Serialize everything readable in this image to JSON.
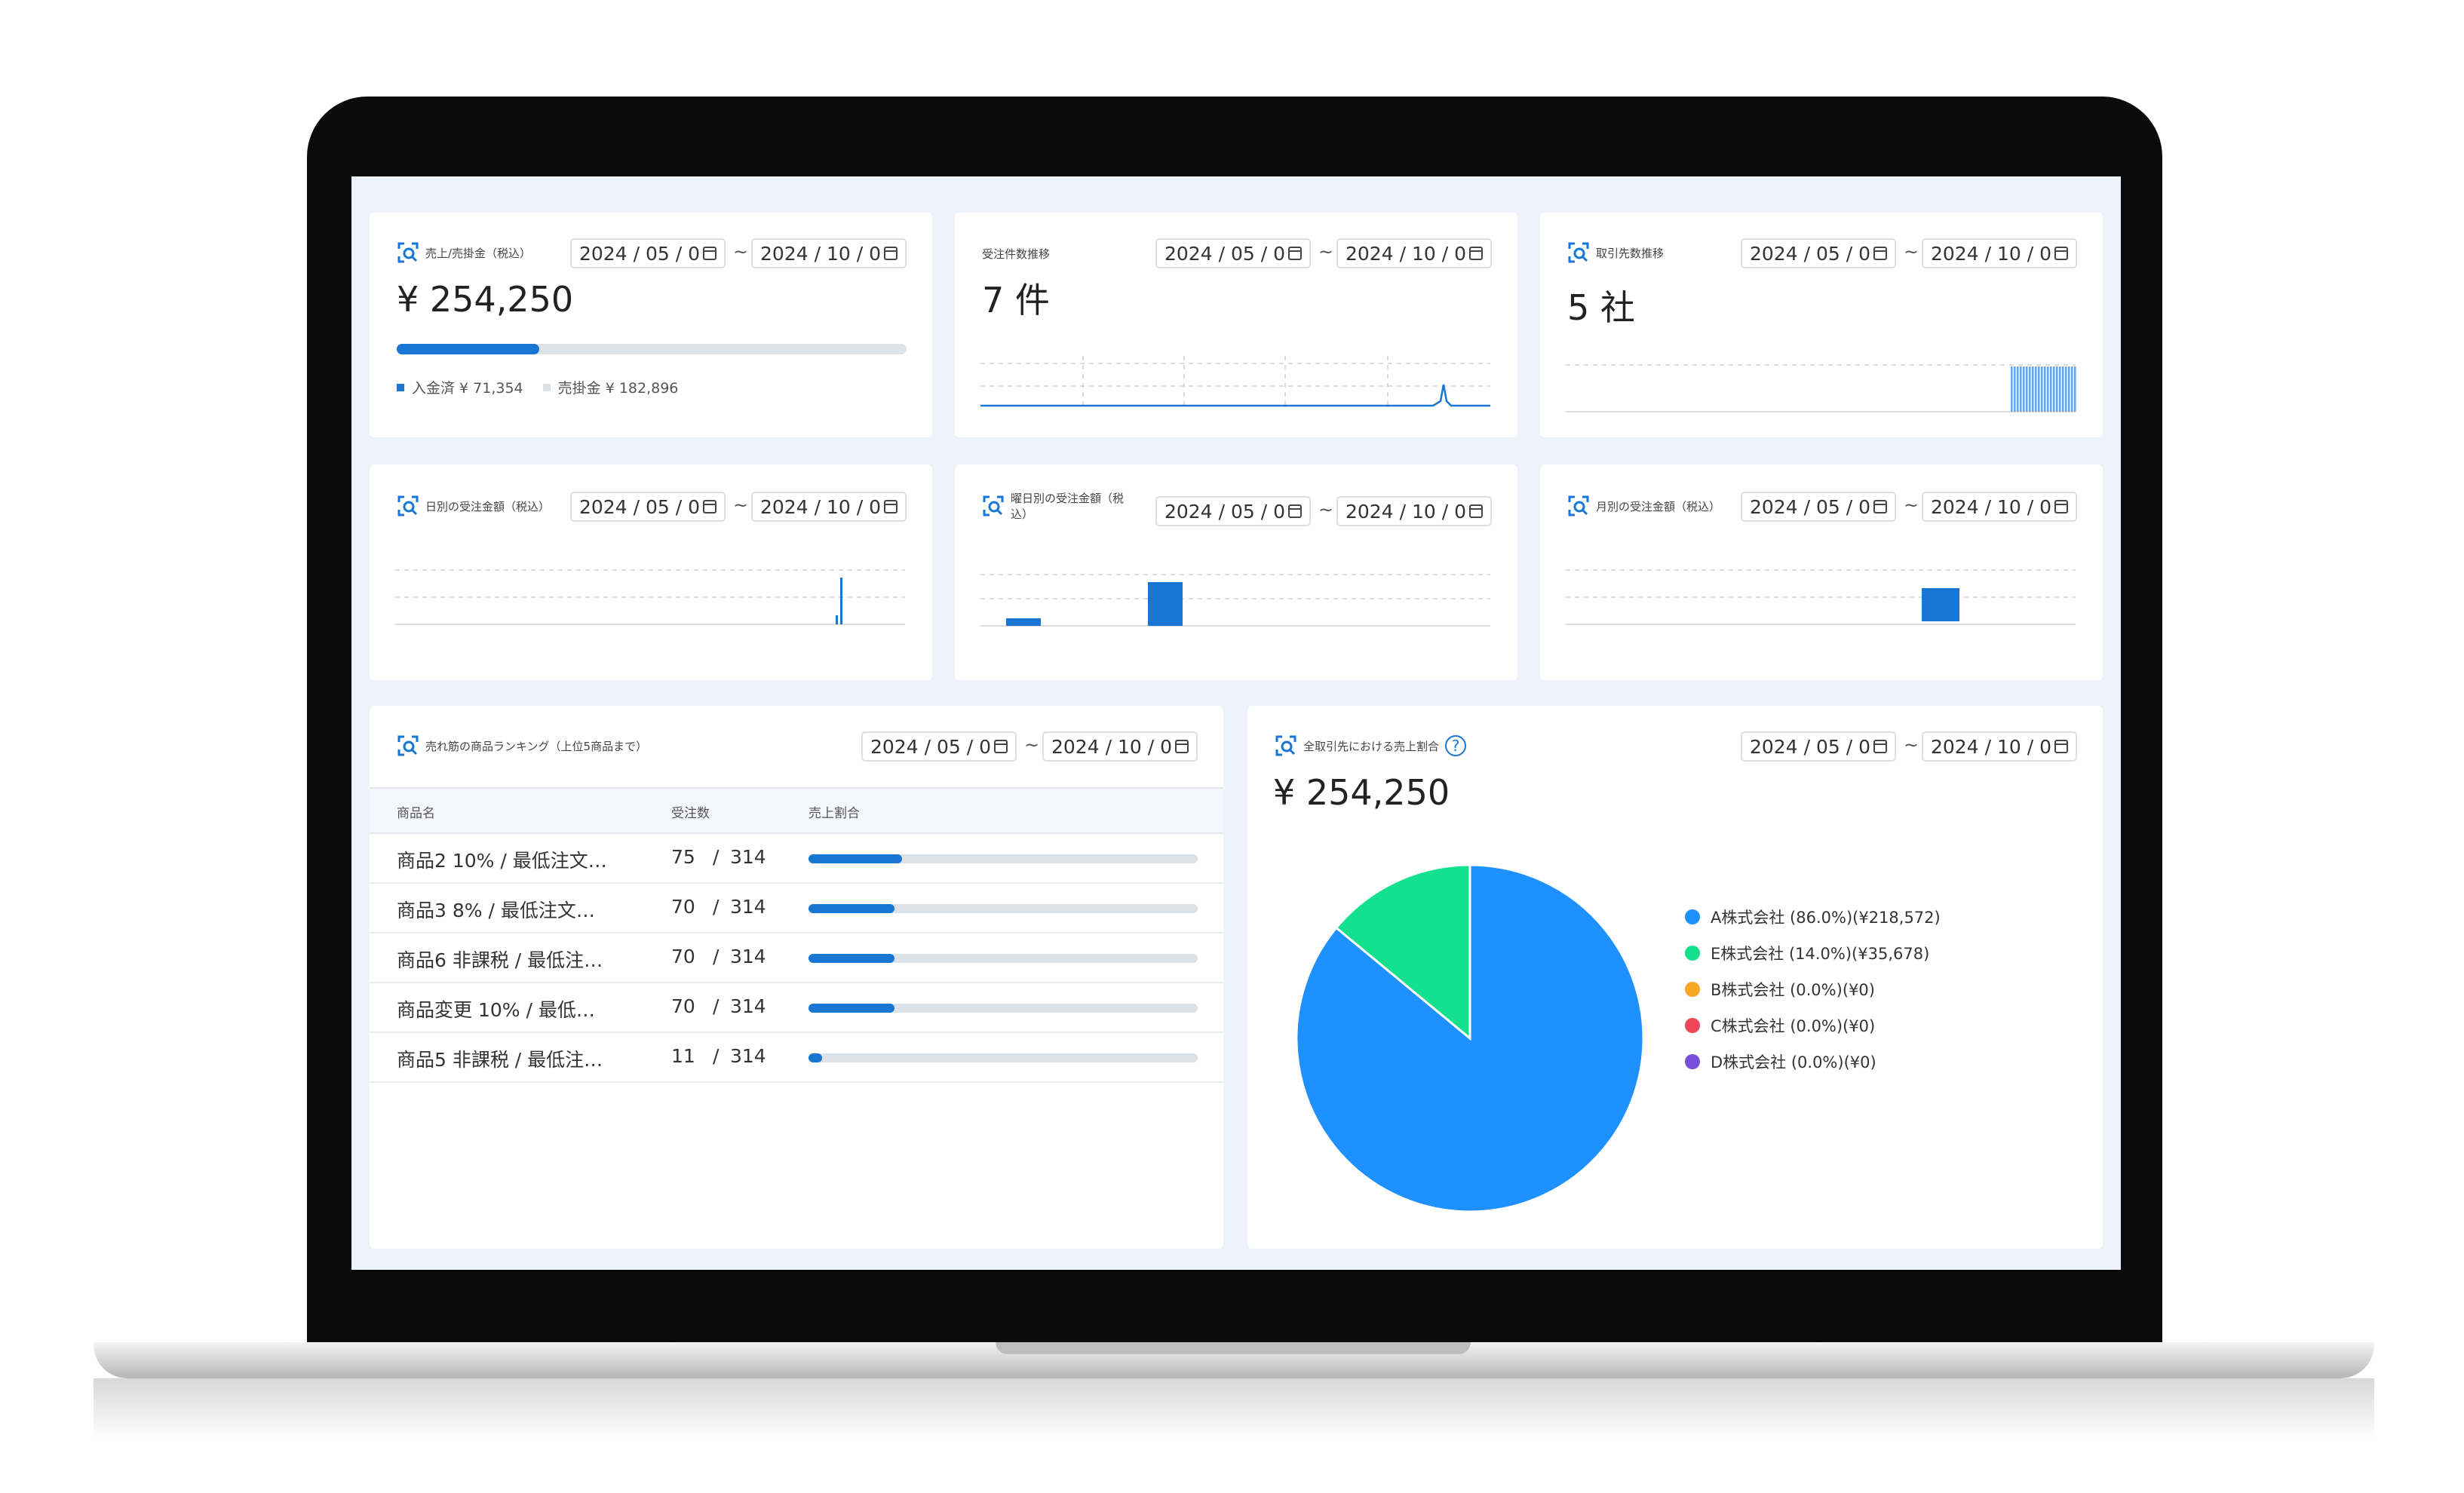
{
  "colors": {
    "accent": "#1976d2",
    "pie_a": "#1e90ff",
    "pie_e": "#14e18e",
    "pie_b": "#f5a623",
    "pie_c": "#f0465a",
    "pie_d": "#7b4ddb"
  },
  "date_from": "2024 / 05 / 0",
  "date_to": "2024 / 10 / 0",
  "tilde": "~",
  "sales": {
    "title": "売上/売掛金（税込）",
    "value": "¥ 254,250",
    "progress": 0.28,
    "legend_paid": "入金済 ¥ 71,354",
    "legend_receivable": "売掛金 ¥ 182,896"
  },
  "orders": {
    "title": "受注件数推移",
    "value": "7 件"
  },
  "clients": {
    "title": "取引先数推移",
    "value": "5 社"
  },
  "daily": {
    "title": "日別の受注金額（税込）"
  },
  "weekday": {
    "title": "曜日別の受注金額（税込）"
  },
  "monthly": {
    "title": "月別の受注金額（税込）"
  },
  "ranking": {
    "title": "売れ筋の商品ランキング（上位5商品まで）",
    "headers": [
      "商品名",
      "受注数",
      "売上割合"
    ],
    "rows": [
      {
        "name": "商品2 10% / 最低注文…",
        "qty": "75",
        "total": "314",
        "ratio": 0.24
      },
      {
        "name": "商品3 8% / 最低注文…",
        "qty": "70",
        "total": "314",
        "ratio": 0.22
      },
      {
        "name": "商品6 非課税 / 最低注…",
        "qty": "70",
        "total": "314",
        "ratio": 0.22
      },
      {
        "name": "商品変更 10% / 最低…",
        "qty": "70",
        "total": "314",
        "ratio": 0.22
      },
      {
        "name": "商品5 非課税 / 最低注…",
        "qty": "11",
        "total": "314",
        "ratio": 0.035
      }
    ]
  },
  "share": {
    "title": "全取引先における売上割合",
    "help": "?",
    "value": "¥ 254,250",
    "legend": [
      {
        "label": "A株式会社 (86.0%)(¥218,572)",
        "color": "#1e90ff",
        "value": 86.0
      },
      {
        "label": "E株式会社 (14.0%)(¥35,678)",
        "color": "#14e18e",
        "value": 14.0
      },
      {
        "label": "B株式会社 (0.0%)(¥0)",
        "color": "#f5a623",
        "value": 0
      },
      {
        "label": "C株式会社 (0.0%)(¥0)",
        "color": "#f0465a",
        "value": 0
      },
      {
        "label": "D株式会社 (0.0%)(¥0)",
        "color": "#7b4ddb",
        "value": 0
      }
    ]
  }
}
